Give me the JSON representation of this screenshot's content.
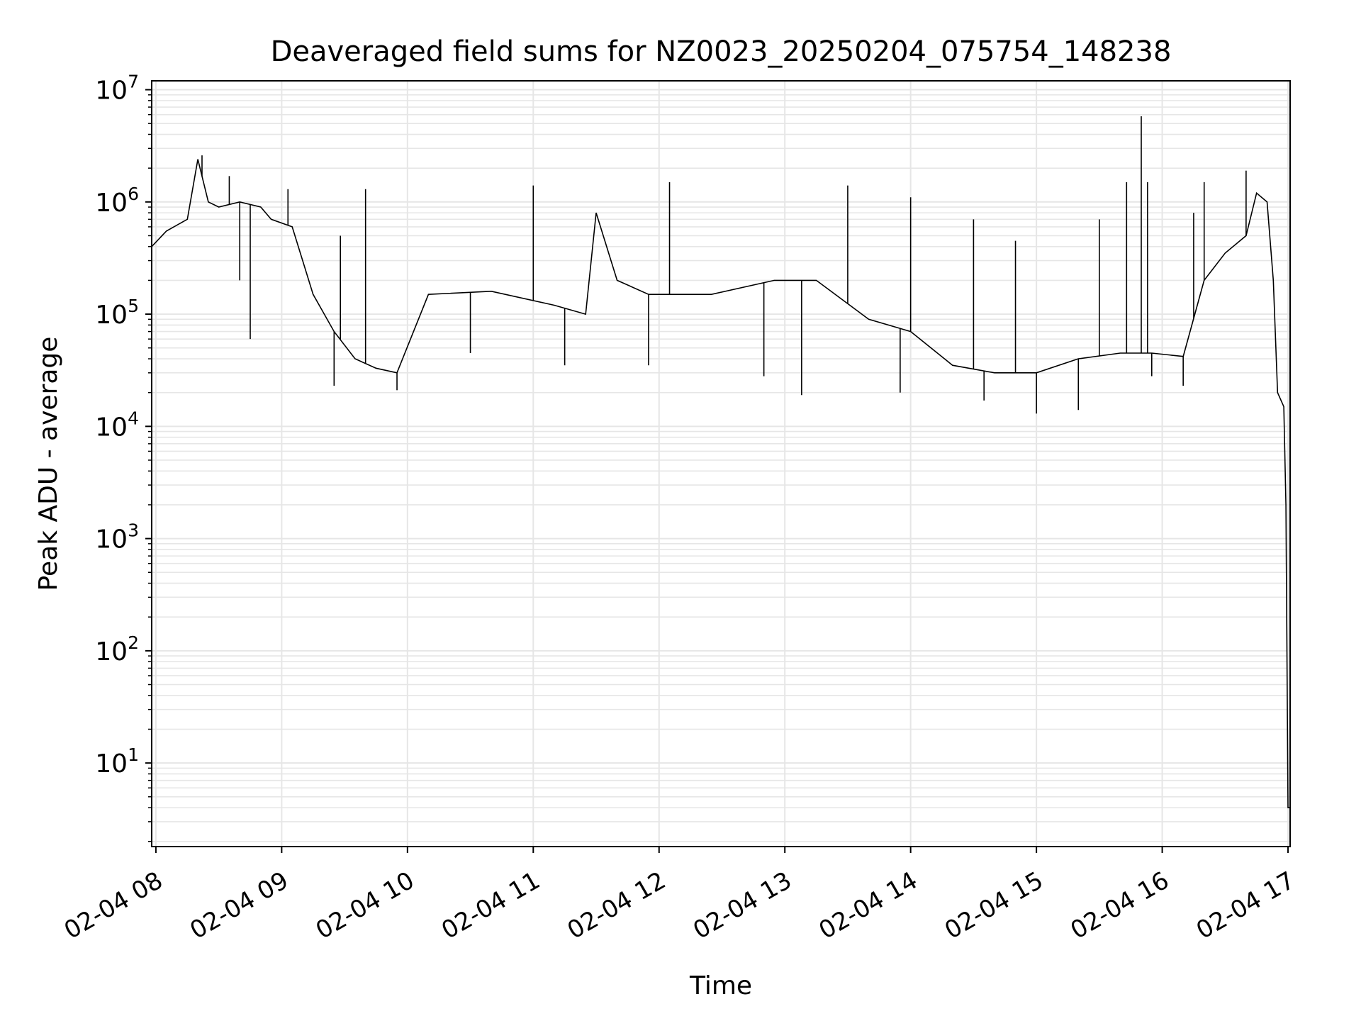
{
  "chart_data": {
    "type": "line",
    "title": "Deaveraged field sums for NZ0023_20250204_075754_148238",
    "xlabel": "Time",
    "ylabel": "Peak ADU - average",
    "yscale": "log",
    "ylim": [
      1.8,
      12000000
    ],
    "xlim": [
      "2025-02-04 07:58",
      "2025-02-04 17:01"
    ],
    "grid": true,
    "line_color": "#000000",
    "grid_color": "#e6e6e6",
    "x_ticks": [
      {
        "t": "2025-02-04 08:00",
        "label": "02-04 08"
      },
      {
        "t": "2025-02-04 09:00",
        "label": "02-04 09"
      },
      {
        "t": "2025-02-04 10:00",
        "label": "02-04 10"
      },
      {
        "t": "2025-02-04 11:00",
        "label": "02-04 11"
      },
      {
        "t": "2025-02-04 12:00",
        "label": "02-04 12"
      },
      {
        "t": "2025-02-04 13:00",
        "label": "02-04 13"
      },
      {
        "t": "2025-02-04 14:00",
        "label": "02-04 14"
      },
      {
        "t": "2025-02-04 15:00",
        "label": "02-04 15"
      },
      {
        "t": "2025-02-04 16:00",
        "label": "02-04 16"
      },
      {
        "t": "2025-02-04 17:00",
        "label": "02-04 17"
      }
    ],
    "y_ticks": [
      {
        "value": 10,
        "base": "10",
        "exp": "1"
      },
      {
        "value": 100,
        "base": "10",
        "exp": "2"
      },
      {
        "value": 1000,
        "base": "10",
        "exp": "3"
      },
      {
        "value": 10000,
        "base": "10",
        "exp": "4"
      },
      {
        "value": 100000,
        "base": "10",
        "exp": "5"
      },
      {
        "value": 1000000,
        "base": "10",
        "exp": "6"
      },
      {
        "value": 10000000,
        "base": "10",
        "exp": "7"
      }
    ],
    "series": [
      {
        "x": [
          "2025-02-04 07:58",
          "2025-02-04 08:05",
          "2025-02-04 08:15",
          "2025-02-04 08:20",
          "2025-02-04 08:25",
          "2025-02-04 08:30",
          "2025-02-04 08:40",
          "2025-02-04 08:50",
          "2025-02-04 08:55",
          "2025-02-04 09:05",
          "2025-02-04 09:15",
          "2025-02-04 09:25",
          "2025-02-04 09:35",
          "2025-02-04 09:45",
          "2025-02-04 09:55",
          "2025-02-04 10:10",
          "2025-02-04 10:40",
          "2025-02-04 11:10",
          "2025-02-04 11:25",
          "2025-02-04 11:30",
          "2025-02-04 11:40",
          "2025-02-04 11:55",
          "2025-02-04 12:25",
          "2025-02-04 12:55",
          "2025-02-04 13:15",
          "2025-02-04 13:40",
          "2025-02-04 14:00",
          "2025-02-04 14:20",
          "2025-02-04 14:40",
          "2025-02-04 15:00",
          "2025-02-04 15:20",
          "2025-02-04 15:40",
          "2025-02-04 15:55",
          "2025-02-04 16:10",
          "2025-02-04 16:20",
          "2025-02-04 16:30",
          "2025-02-04 16:40",
          "2025-02-04 16:45",
          "2025-02-04 16:50",
          "2025-02-04 16:53",
          "2025-02-04 16:55",
          "2025-02-04 16:58",
          "2025-02-04 16:59",
          "2025-02-04 17:00",
          "2025-02-04 17:01"
        ],
        "y": [
          400000,
          550000,
          700000,
          2400000,
          1000000,
          900000,
          1000000,
          900000,
          700000,
          600000,
          150000,
          70000,
          40000,
          33000,
          30000,
          150000,
          160000,
          120000,
          100000,
          800000,
          200000,
          150000,
          150000,
          200000,
          200000,
          90000,
          70000,
          35000,
          30000,
          30000,
          40000,
          45000,
          45000,
          42000,
          200000,
          350000,
          500000,
          1200000,
          1000000,
          200000,
          20000,
          15000,
          2000,
          4,
          4
        ],
        "spikes_high": [
          [
            "2025-02-04 08:22",
            2600000
          ],
          [
            "2025-02-04 08:35",
            1700000
          ],
          [
            "2025-02-04 09:03",
            1300000
          ],
          [
            "2025-02-04 09:28",
            500000
          ],
          [
            "2025-02-04 09:40",
            1300000
          ],
          [
            "2025-02-04 11:00",
            1400000
          ],
          [
            "2025-02-04 12:05",
            1500000
          ],
          [
            "2025-02-04 13:30",
            1400000
          ],
          [
            "2025-02-04 14:00",
            1100000
          ],
          [
            "2025-02-04 14:30",
            700000
          ],
          [
            "2025-02-04 14:50",
            450000
          ],
          [
            "2025-02-04 15:30",
            700000
          ],
          [
            "2025-02-04 15:43",
            1500000
          ],
          [
            "2025-02-04 15:50",
            5800000
          ],
          [
            "2025-02-04 15:53",
            1500000
          ],
          [
            "2025-02-04 16:15",
            800000
          ],
          [
            "2025-02-04 16:20",
            1500000
          ],
          [
            "2025-02-04 16:40",
            1900000
          ]
        ],
        "dips_low": [
          [
            "2025-02-04 08:40",
            200000
          ],
          [
            "2025-02-04 08:45",
            60000
          ],
          [
            "2025-02-04 09:25",
            23000
          ],
          [
            "2025-02-04 09:55",
            21000
          ],
          [
            "2025-02-04 10:30",
            45000
          ],
          [
            "2025-02-04 11:15",
            35000
          ],
          [
            "2025-02-04 11:55",
            35000
          ],
          [
            "2025-02-04 12:50",
            28000
          ],
          [
            "2025-02-04 13:08",
            19000
          ],
          [
            "2025-02-04 13:55",
            20000
          ],
          [
            "2025-02-04 14:35",
            17000
          ],
          [
            "2025-02-04 15:00",
            13000
          ],
          [
            "2025-02-04 15:20",
            14000
          ],
          [
            "2025-02-04 15:55",
            28000
          ],
          [
            "2025-02-04 16:10",
            23000
          ]
        ]
      }
    ]
  }
}
